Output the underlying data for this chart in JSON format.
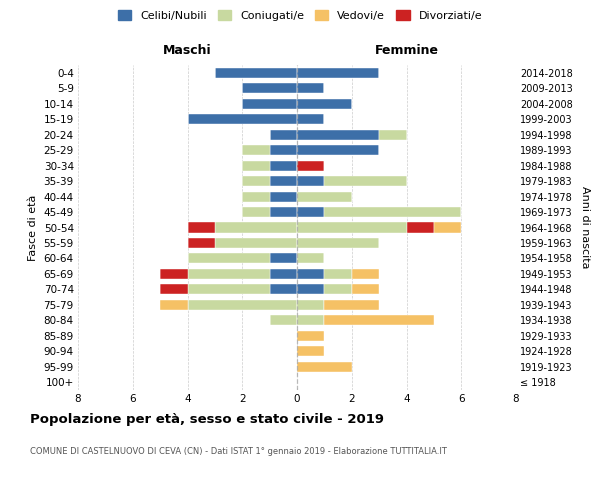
{
  "age_groups": [
    "100+",
    "95-99",
    "90-94",
    "85-89",
    "80-84",
    "75-79",
    "70-74",
    "65-69",
    "60-64",
    "55-59",
    "50-54",
    "45-49",
    "40-44",
    "35-39",
    "30-34",
    "25-29",
    "20-24",
    "15-19",
    "10-14",
    "5-9",
    "0-4"
  ],
  "birth_years": [
    "≤ 1918",
    "1919-1923",
    "1924-1928",
    "1929-1933",
    "1934-1938",
    "1939-1943",
    "1944-1948",
    "1949-1953",
    "1954-1958",
    "1959-1963",
    "1964-1968",
    "1969-1973",
    "1974-1978",
    "1979-1983",
    "1984-1988",
    "1989-1993",
    "1994-1998",
    "1999-2003",
    "2004-2008",
    "2009-2013",
    "2014-2018"
  ],
  "colors": {
    "celibi": "#3d6fa8",
    "coniugati": "#c8d9a0",
    "vedovi": "#f5c165",
    "divorziati": "#cc2222"
  },
  "maschi": {
    "celibi": [
      0,
      0,
      0,
      0,
      0,
      0,
      1,
      1,
      1,
      0,
      0,
      1,
      1,
      1,
      1,
      1,
      1,
      4,
      2,
      2,
      3
    ],
    "coniugati": [
      0,
      0,
      0,
      0,
      1,
      4,
      3,
      3,
      3,
      3,
      3,
      1,
      1,
      1,
      1,
      1,
      0,
      0,
      0,
      0,
      0
    ],
    "vedovi": [
      0,
      0,
      0,
      0,
      0,
      1,
      0,
      0,
      0,
      0,
      0,
      0,
      0,
      0,
      0,
      0,
      0,
      0,
      0,
      0,
      0
    ],
    "divorziati": [
      0,
      0,
      0,
      0,
      0,
      0,
      1,
      1,
      0,
      1,
      1,
      0,
      0,
      0,
      0,
      0,
      0,
      0,
      0,
      0,
      0
    ]
  },
  "femmine": {
    "celibi": [
      0,
      0,
      0,
      0,
      0,
      0,
      1,
      1,
      0,
      0,
      0,
      1,
      0,
      1,
      0,
      3,
      3,
      1,
      2,
      1,
      3
    ],
    "coniugati": [
      0,
      0,
      0,
      0,
      1,
      1,
      1,
      1,
      1,
      3,
      4,
      5,
      2,
      3,
      0,
      0,
      1,
      0,
      0,
      0,
      0
    ],
    "vedovi": [
      0,
      2,
      1,
      1,
      4,
      2,
      1,
      1,
      0,
      0,
      1,
      0,
      0,
      0,
      0,
      0,
      0,
      0,
      0,
      0,
      0
    ],
    "divorziati": [
      0,
      0,
      0,
      0,
      0,
      0,
      0,
      0,
      0,
      0,
      1,
      0,
      0,
      0,
      1,
      0,
      0,
      0,
      0,
      0,
      0
    ]
  },
  "xlim": 8,
  "title": "Popolazione per età, sesso e stato civile - 2019",
  "subtitle": "COMUNE DI CASTELNUOVO DI CEVA (CN) - Dati ISTAT 1° gennaio 2019 - Elaborazione TUTTITALIA.IT",
  "xlabel_left": "Maschi",
  "xlabel_right": "Femmine",
  "ylabel_left": "Fasce di età",
  "ylabel_right": "Anni di nascita",
  "legend_labels": [
    "Celibi/Nubili",
    "Coniugati/e",
    "Vedovi/e",
    "Divorziati/e"
  ],
  "bg_color": "#ffffff",
  "grid_color": "#cccccc"
}
